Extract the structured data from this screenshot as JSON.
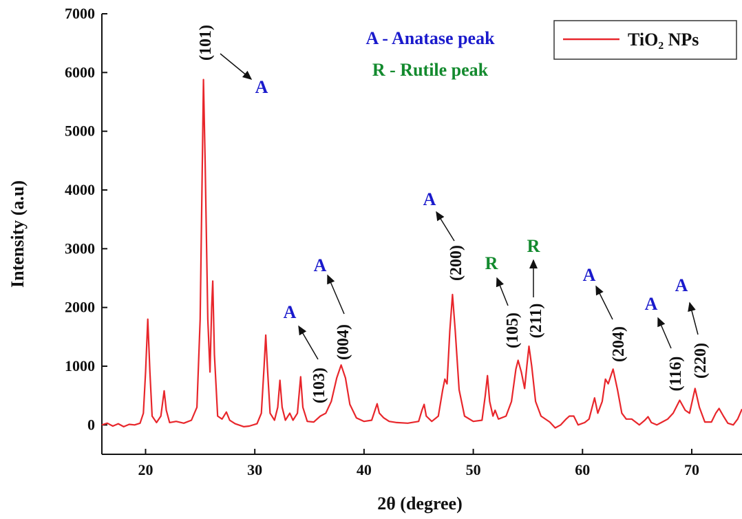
{
  "chart_data": {
    "type": "line",
    "x_label": "2θ (degree)",
    "y_label": "Intensity (a.u)",
    "xlim": [
      16,
      74.6
    ],
    "ylim": [
      -500,
      7000
    ],
    "xticks": [
      20,
      30,
      40,
      50,
      60,
      70
    ],
    "yticks": [
      0,
      1000,
      2000,
      3000,
      4000,
      5000,
      6000,
      7000
    ],
    "legend_position": "upper right",
    "key_lines": [
      {
        "text": "A - Anatase peak",
        "color": "#1a1acc"
      },
      {
        "text": "R - Rutile peak",
        "color": "#138a2e"
      }
    ],
    "annotations": [
      {
        "label": "(101)",
        "letter": "A"
      },
      {
        "label": "(103)",
        "letter": "A"
      },
      {
        "label": "(004)",
        "letter": "A"
      },
      {
        "label": "(200)",
        "letter": "A"
      },
      {
        "label": "(105)",
        "letter": "R"
      },
      {
        "label": "(211)",
        "letter": "R"
      },
      {
        "label": "(204)",
        "letter": "A"
      },
      {
        "label": "(116)",
        "letter": "A"
      },
      {
        "label": "(220)",
        "letter": "A"
      }
    ],
    "x": [
      16,
      16.5,
      17,
      17.5,
      18,
      18.5,
      19,
      19.5,
      19.8,
      20.0,
      20.2,
      20.4,
      20.6,
      21.0,
      21.4,
      21.7,
      21.9,
      22.2,
      22.8,
      23.5,
      24.2,
      24.7,
      25.0,
      25.2,
      25.3,
      25.45,
      25.7,
      25.9,
      26.05,
      26.15,
      26.3,
      26.6,
      27.0,
      27.4,
      27.7,
      28.2,
      29,
      29.5,
      30.2,
      30.6,
      30.85,
      31.0,
      31.15,
      31.4,
      31.8,
      32.1,
      32.3,
      32.5,
      32.8,
      33.2,
      33.5,
      33.9,
      34.2,
      34.4,
      34.8,
      35.4,
      36.0,
      36.5,
      37.0,
      37.5,
      37.9,
      38.3,
      38.7,
      39.3,
      40,
      40.7,
      41.0,
      41.2,
      41.4,
      41.8,
      42.3,
      43,
      44,
      45,
      45.3,
      45.5,
      45.7,
      46.2,
      46.8,
      47.2,
      47.4,
      47.6,
      47.85,
      48.1,
      48.35,
      48.7,
      49.2,
      50,
      50.8,
      51.1,
      51.3,
      51.5,
      51.8,
      52.0,
      52.3,
      53,
      53.5,
      53.9,
      54.1,
      54.4,
      54.7,
      54.9,
      55.1,
      55.35,
      55.7,
      56.2,
      57,
      57.5,
      58,
      58.5,
      58.8,
      59.2,
      59.6,
      60.2,
      60.6,
      61.1,
      61.4,
      61.8,
      62.1,
      62.35,
      62.8,
      63.2,
      63.6,
      64,
      64.5,
      65.2,
      65.7,
      66.0,
      66.3,
      66.8,
      67.3,
      67.8,
      68.3,
      68.9,
      69.4,
      69.8,
      70.3,
      70.7,
      71.2,
      71.8,
      72.2,
      72.5,
      72.9,
      73.3,
      73.8,
      74.2,
      74.6
    ],
    "series": [
      {
        "name": "TiO₂ NPs",
        "color": "#e8262b",
        "values": [
          0,
          30,
          -20,
          20,
          -30,
          10,
          0,
          30,
          200,
          900,
          1800,
          900,
          150,
          40,
          150,
          580,
          250,
          40,
          60,
          30,
          80,
          300,
          1800,
          4500,
          5880,
          4500,
          1800,
          900,
          2000,
          2450,
          1200,
          150,
          100,
          220,
          80,
          20,
          -30,
          -20,
          20,
          200,
          1000,
          1530,
          1000,
          200,
          80,
          300,
          760,
          300,
          80,
          200,
          80,
          200,
          820,
          300,
          60,
          50,
          150,
          200,
          400,
          800,
          1020,
          800,
          350,
          120,
          60,
          80,
          250,
          360,
          200,
          120,
          60,
          40,
          30,
          60,
          250,
          350,
          150,
          60,
          150,
          600,
          780,
          700,
          1600,
          2220,
          1600,
          600,
          150,
          60,
          80,
          500,
          840,
          400,
          150,
          250,
          100,
          150,
          400,
          950,
          1100,
          900,
          620,
          1000,
          1340,
          1000,
          400,
          150,
          50,
          -50,
          0,
          100,
          150,
          150,
          0,
          40,
          100,
          460,
          200,
          400,
          780,
          700,
          950,
          600,
          200,
          100,
          100,
          0,
          80,
          140,
          40,
          0,
          50,
          100,
          200,
          420,
          250,
          200,
          620,
          300,
          50,
          50,
          200,
          280,
          150,
          30,
          0,
          100,
          270
        ]
      }
    ]
  }
}
